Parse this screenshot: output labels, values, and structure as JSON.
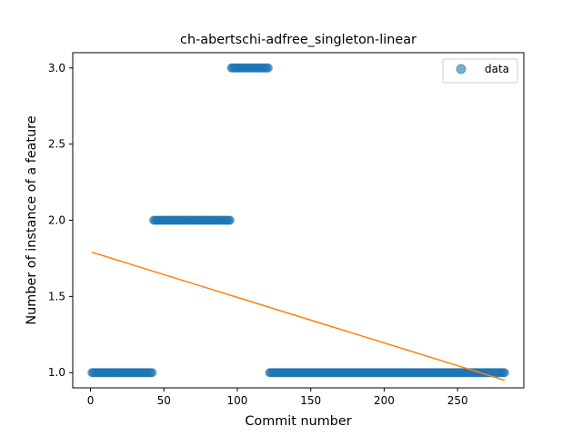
{
  "chart_data": {
    "type": "scatter",
    "title": "ch-abertschi-adfree_singleton-linear",
    "xlabel": "Commit number",
    "ylabel": "Number of instance of a feature",
    "xlim": [
      -12.1,
      295.1
    ],
    "ylim": [
      0.9,
      3.1
    ],
    "xticks": [
      0,
      50,
      100,
      150,
      200,
      250
    ],
    "yticks": [
      1.0,
      1.5,
      2.0,
      2.5,
      3.0
    ],
    "xtick_labels": [
      "0",
      "50",
      "100",
      "150",
      "200",
      "250"
    ],
    "ytick_labels": [
      "1.0",
      "1.5",
      "2.0",
      "2.5",
      "3.0"
    ],
    "grid": false,
    "legend": {
      "position": "top-right",
      "entries": [
        "data"
      ]
    },
    "series": [
      {
        "name": "data",
        "kind": "scatter",
        "color": "#1f77b4",
        "alpha": 0.6,
        "segments": [
          {
            "x_start": 1,
            "x_end": 42,
            "y": 1.0
          },
          {
            "x_start": 43,
            "x_end": 95,
            "y": 2.0
          },
          {
            "x_start": 96,
            "x_end": 121,
            "y": 3.0
          },
          {
            "x_start": 122,
            "x_end": 282,
            "y": 1.0
          }
        ]
      },
      {
        "name": "",
        "kind": "line",
        "color": "#ff7f0e",
        "x": [
          1,
          282
        ],
        "y": [
          1.79,
          0.95
        ]
      }
    ]
  }
}
